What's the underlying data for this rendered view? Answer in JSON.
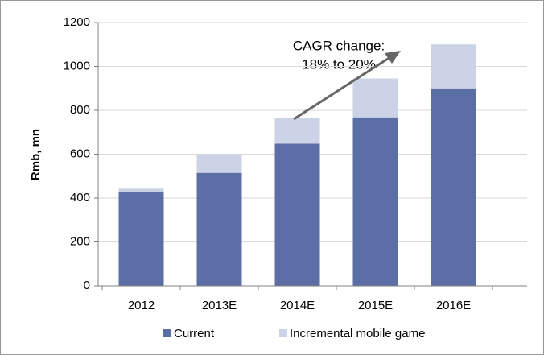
{
  "chart_data": {
    "type": "stacked_bar",
    "y_label": "Rmb, mn",
    "annotation": [
      "CAGR change:",
      "18% to 20%"
    ],
    "categories": [
      "2012",
      "2013E",
      "2014E",
      "2015E",
      "2016E"
    ],
    "series": [
      {
        "name": "Current",
        "color": "#5b6fa6",
        "values": [
          430,
          515,
          648,
          768,
          900
        ]
      },
      {
        "name": "Incremental mobile game",
        "color": "#cdd3e6",
        "values": [
          13,
          80,
          117,
          177,
          200
        ]
      }
    ],
    "ylim": [
      0,
      1200
    ],
    "yticks": [
      0,
      200,
      400,
      600,
      800,
      1000,
      1200
    ],
    "grid": true,
    "legend": "bottom"
  }
}
